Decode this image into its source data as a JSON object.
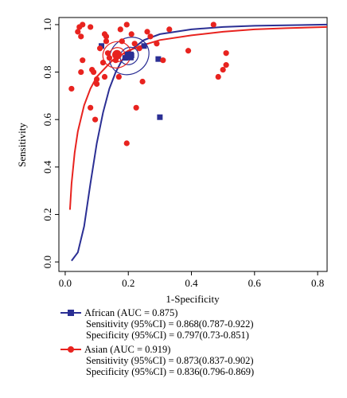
{
  "chart_data": {
    "type": "scatter",
    "title": "",
    "xlabel": "1-Specificity",
    "ylabel": "Sensitivity",
    "xlim": [
      -0.02,
      0.83
    ],
    "ylim": [
      -0.04,
      1.03
    ],
    "xticks": [
      "0.0",
      "0.2",
      "0.4",
      "0.6",
      "0.8"
    ],
    "yticks": [
      "0.0",
      "0.2",
      "0.4",
      "0.6",
      "0.8",
      "1.0"
    ],
    "grid": false,
    "legend_position": "bottom",
    "series": [
      {
        "name": "African (AUC = 0.875)",
        "color": "#2b2f94",
        "marker": "square",
        "points": [
          {
            "x": 0.115,
            "y": 0.91
          },
          {
            "x": 0.19,
            "y": 0.86
          },
          {
            "x": 0.21,
            "y": 0.87
          },
          {
            "x": 0.25,
            "y": 0.91
          },
          {
            "x": 0.295,
            "y": 0.855
          },
          {
            "x": 0.3,
            "y": 0.61
          }
        ],
        "summary_point": {
          "x": 0.203,
          "y": 0.868
        },
        "curve": [
          [
            0.02,
            0.005
          ],
          [
            0.04,
            0.04
          ],
          [
            0.06,
            0.15
          ],
          [
            0.08,
            0.33
          ],
          [
            0.1,
            0.5
          ],
          [
            0.12,
            0.63
          ],
          [
            0.14,
            0.73
          ],
          [
            0.16,
            0.8
          ],
          [
            0.18,
            0.85
          ],
          [
            0.2,
            0.885
          ],
          [
            0.25,
            0.935
          ],
          [
            0.3,
            0.96
          ],
          [
            0.4,
            0.98
          ],
          [
            0.5,
            0.99
          ],
          [
            0.6,
            0.995
          ],
          [
            0.83,
            1.0
          ]
        ],
        "stats": [
          "Sensitivity (95%CI) = 0.868(0.787-0.922)",
          "Specificity (95%CI) = 0.797(0.73-0.851)"
        ]
      },
      {
        "name": "Asian (AUC = 0.919)",
        "color": "#e8231f",
        "marker": "circle",
        "points": [
          {
            "x": 0.02,
            "y": 0.73
          },
          {
            "x": 0.04,
            "y": 0.97
          },
          {
            "x": 0.045,
            "y": 0.99
          },
          {
            "x": 0.05,
            "y": 0.95
          },
          {
            "x": 0.055,
            "y": 1.0
          },
          {
            "x": 0.05,
            "y": 0.8
          },
          {
            "x": 0.055,
            "y": 0.85
          },
          {
            "x": 0.08,
            "y": 0.99
          },
          {
            "x": 0.085,
            "y": 0.81
          },
          {
            "x": 0.09,
            "y": 0.8
          },
          {
            "x": 0.1,
            "y": 0.77
          },
          {
            "x": 0.1,
            "y": 0.75
          },
          {
            "x": 0.08,
            "y": 0.65
          },
          {
            "x": 0.095,
            "y": 0.6
          },
          {
            "x": 0.11,
            "y": 0.9
          },
          {
            "x": 0.12,
            "y": 0.84
          },
          {
            "x": 0.125,
            "y": 0.96
          },
          {
            "x": 0.13,
            "y": 0.95
          },
          {
            "x": 0.13,
            "y": 0.93
          },
          {
            "x": 0.135,
            "y": 0.88
          },
          {
            "x": 0.14,
            "y": 0.86
          },
          {
            "x": 0.125,
            "y": 0.78
          },
          {
            "x": 0.16,
            "y": 0.85
          },
          {
            "x": 0.17,
            "y": 0.78
          },
          {
            "x": 0.175,
            "y": 0.98
          },
          {
            "x": 0.18,
            "y": 0.93
          },
          {
            "x": 0.195,
            "y": 1.0
          },
          {
            "x": 0.21,
            "y": 0.96
          },
          {
            "x": 0.22,
            "y": 0.92
          },
          {
            "x": 0.225,
            "y": 0.65
          },
          {
            "x": 0.235,
            "y": 0.9
          },
          {
            "x": 0.245,
            "y": 0.76
          },
          {
            "x": 0.26,
            "y": 0.97
          },
          {
            "x": 0.27,
            "y": 0.95
          },
          {
            "x": 0.29,
            "y": 0.92
          },
          {
            "x": 0.31,
            "y": 0.85
          },
          {
            "x": 0.33,
            "y": 0.98
          },
          {
            "x": 0.195,
            "y": 0.5
          },
          {
            "x": 0.39,
            "y": 0.89
          },
          {
            "x": 0.47,
            "y": 1.0
          },
          {
            "x": 0.485,
            "y": 0.78
          },
          {
            "x": 0.5,
            "y": 0.81
          },
          {
            "x": 0.51,
            "y": 0.83
          },
          {
            "x": 0.51,
            "y": 0.88
          }
        ],
        "summary_point": {
          "x": 0.164,
          "y": 0.873
        },
        "curve": [
          [
            0.015,
            0.22
          ],
          [
            0.02,
            0.33
          ],
          [
            0.03,
            0.46
          ],
          [
            0.04,
            0.55
          ],
          [
            0.06,
            0.66
          ],
          [
            0.08,
            0.73
          ],
          [
            0.1,
            0.78
          ],
          [
            0.15,
            0.85
          ],
          [
            0.2,
            0.89
          ],
          [
            0.25,
            0.915
          ],
          [
            0.3,
            0.935
          ],
          [
            0.4,
            0.955
          ],
          [
            0.5,
            0.97
          ],
          [
            0.6,
            0.98
          ],
          [
            0.7,
            0.985
          ],
          [
            0.83,
            0.99
          ]
        ],
        "stats": [
          "Sensitivity (95%CI) = 0.873(0.837-0.902)",
          "Specificity (95%CI) = 0.836(0.796-0.869)"
        ]
      }
    ]
  }
}
